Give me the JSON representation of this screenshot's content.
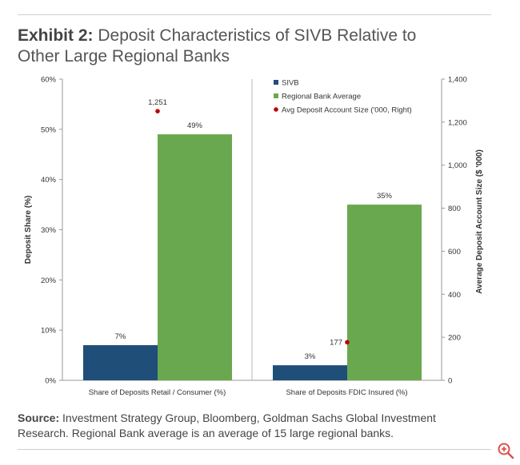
{
  "header": {
    "title_lead": "Exhibit 2:",
    "title_rest": "Deposit Characteristics of SIVB Relative to",
    "title_line2": "Other Large Regional Banks"
  },
  "footer": {
    "source_lead": "Source:",
    "source_text": "Investment Strategy Group, Bloomberg, Goldman Sachs Global Investment",
    "source_text2": "Research. Regional Bank average is an average of 15 large regional banks."
  },
  "colors": {
    "sivb": "#1f4e79",
    "regional": "#6aa84f",
    "dot": "#c00000",
    "axis": "#999999"
  },
  "chart_data": {
    "type": "bar",
    "categories": [
      "Share of  Deposits Retail / Consumer (%)",
      "Share of Deposits FDIC Insured (%)"
    ],
    "series": [
      {
        "name": "SIVB",
        "values": [
          7,
          3
        ],
        "labels": [
          "7%",
          "3%"
        ]
      },
      {
        "name": "Regional Bank Average",
        "values": [
          49,
          35
        ],
        "labels": [
          "49%",
          "35%"
        ]
      }
    ],
    "secondary_series": {
      "name": "Avg Deposit Account Size ('000, Right)",
      "type": "scatter",
      "values": [
        1251,
        177
      ],
      "labels": [
        "1,251",
        "177"
      ]
    },
    "ylabel": "Deposit Share (%)",
    "y2label": "Average Deposit Account Size ($ '000)",
    "ylim": [
      0,
      60
    ],
    "y2lim": [
      0,
      1400
    ],
    "yticks": [
      "0%",
      "10%",
      "20%",
      "30%",
      "40%",
      "50%",
      "60%"
    ],
    "y2ticks": [
      "0",
      "200",
      "400",
      "600",
      "800",
      "1,000",
      "1,200",
      "1,400"
    ],
    "legend_position": "top-right"
  }
}
